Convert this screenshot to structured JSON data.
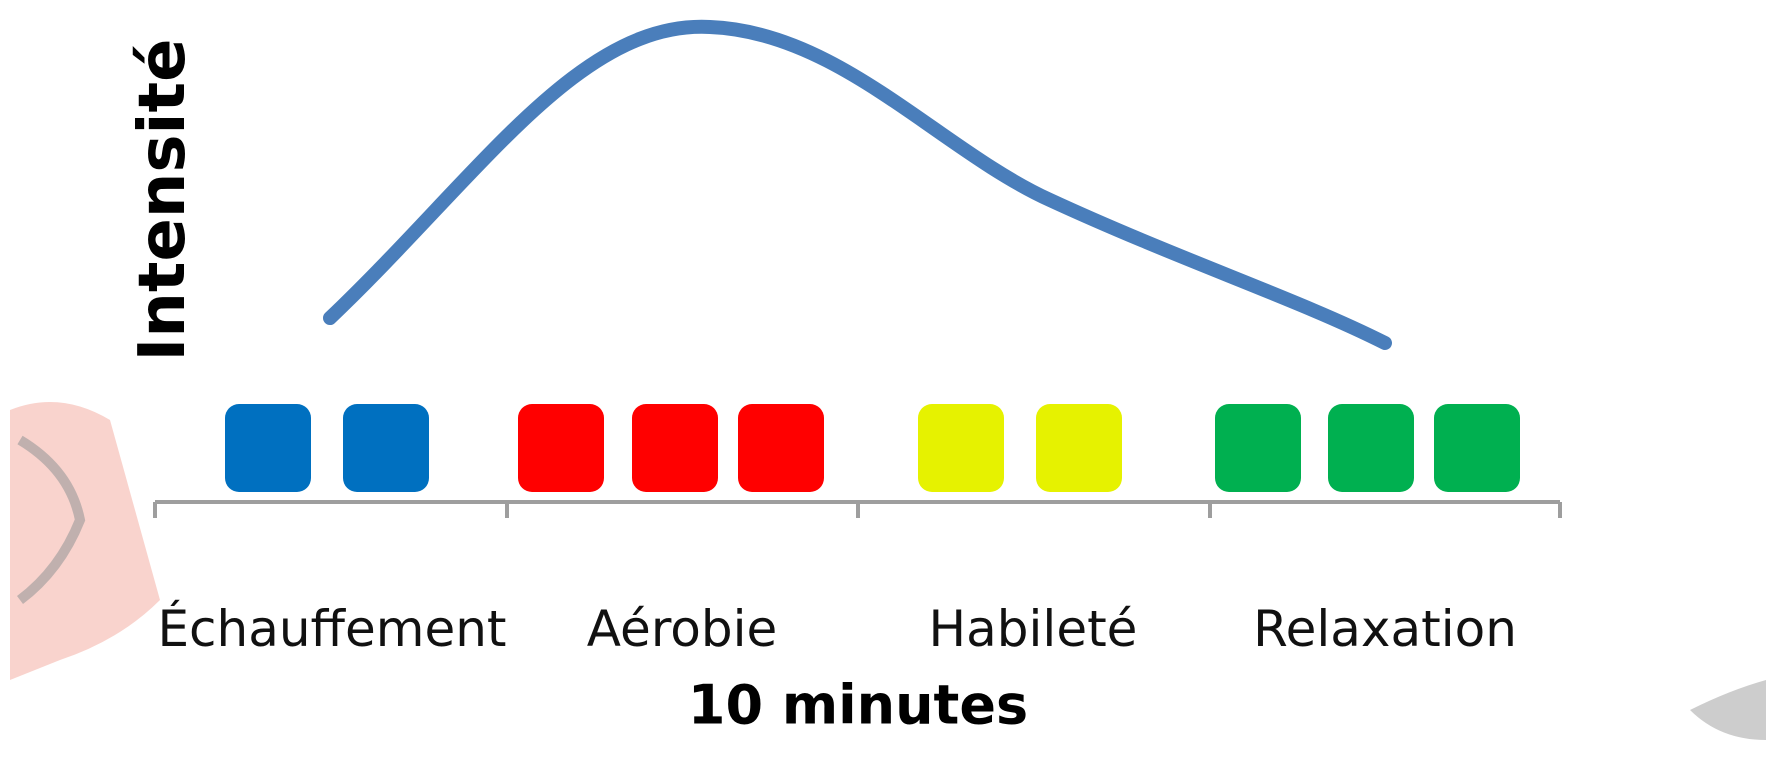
{
  "diagram": {
    "y_axis_label": "Intensité",
    "x_axis_label": "10 minutes",
    "curve_color": "#4a7ebb",
    "segments": [
      {
        "label": "Échauffement",
        "block_count": 2,
        "color": "#0070c0"
      },
      {
        "label": "Aérobie",
        "block_count": 3,
        "color": "#ff0000"
      },
      {
        "label": "Habileté",
        "block_count": 2,
        "color": "#e6f200"
      },
      {
        "label": "Relaxation",
        "block_count": 3,
        "color": "#00b050"
      }
    ]
  }
}
